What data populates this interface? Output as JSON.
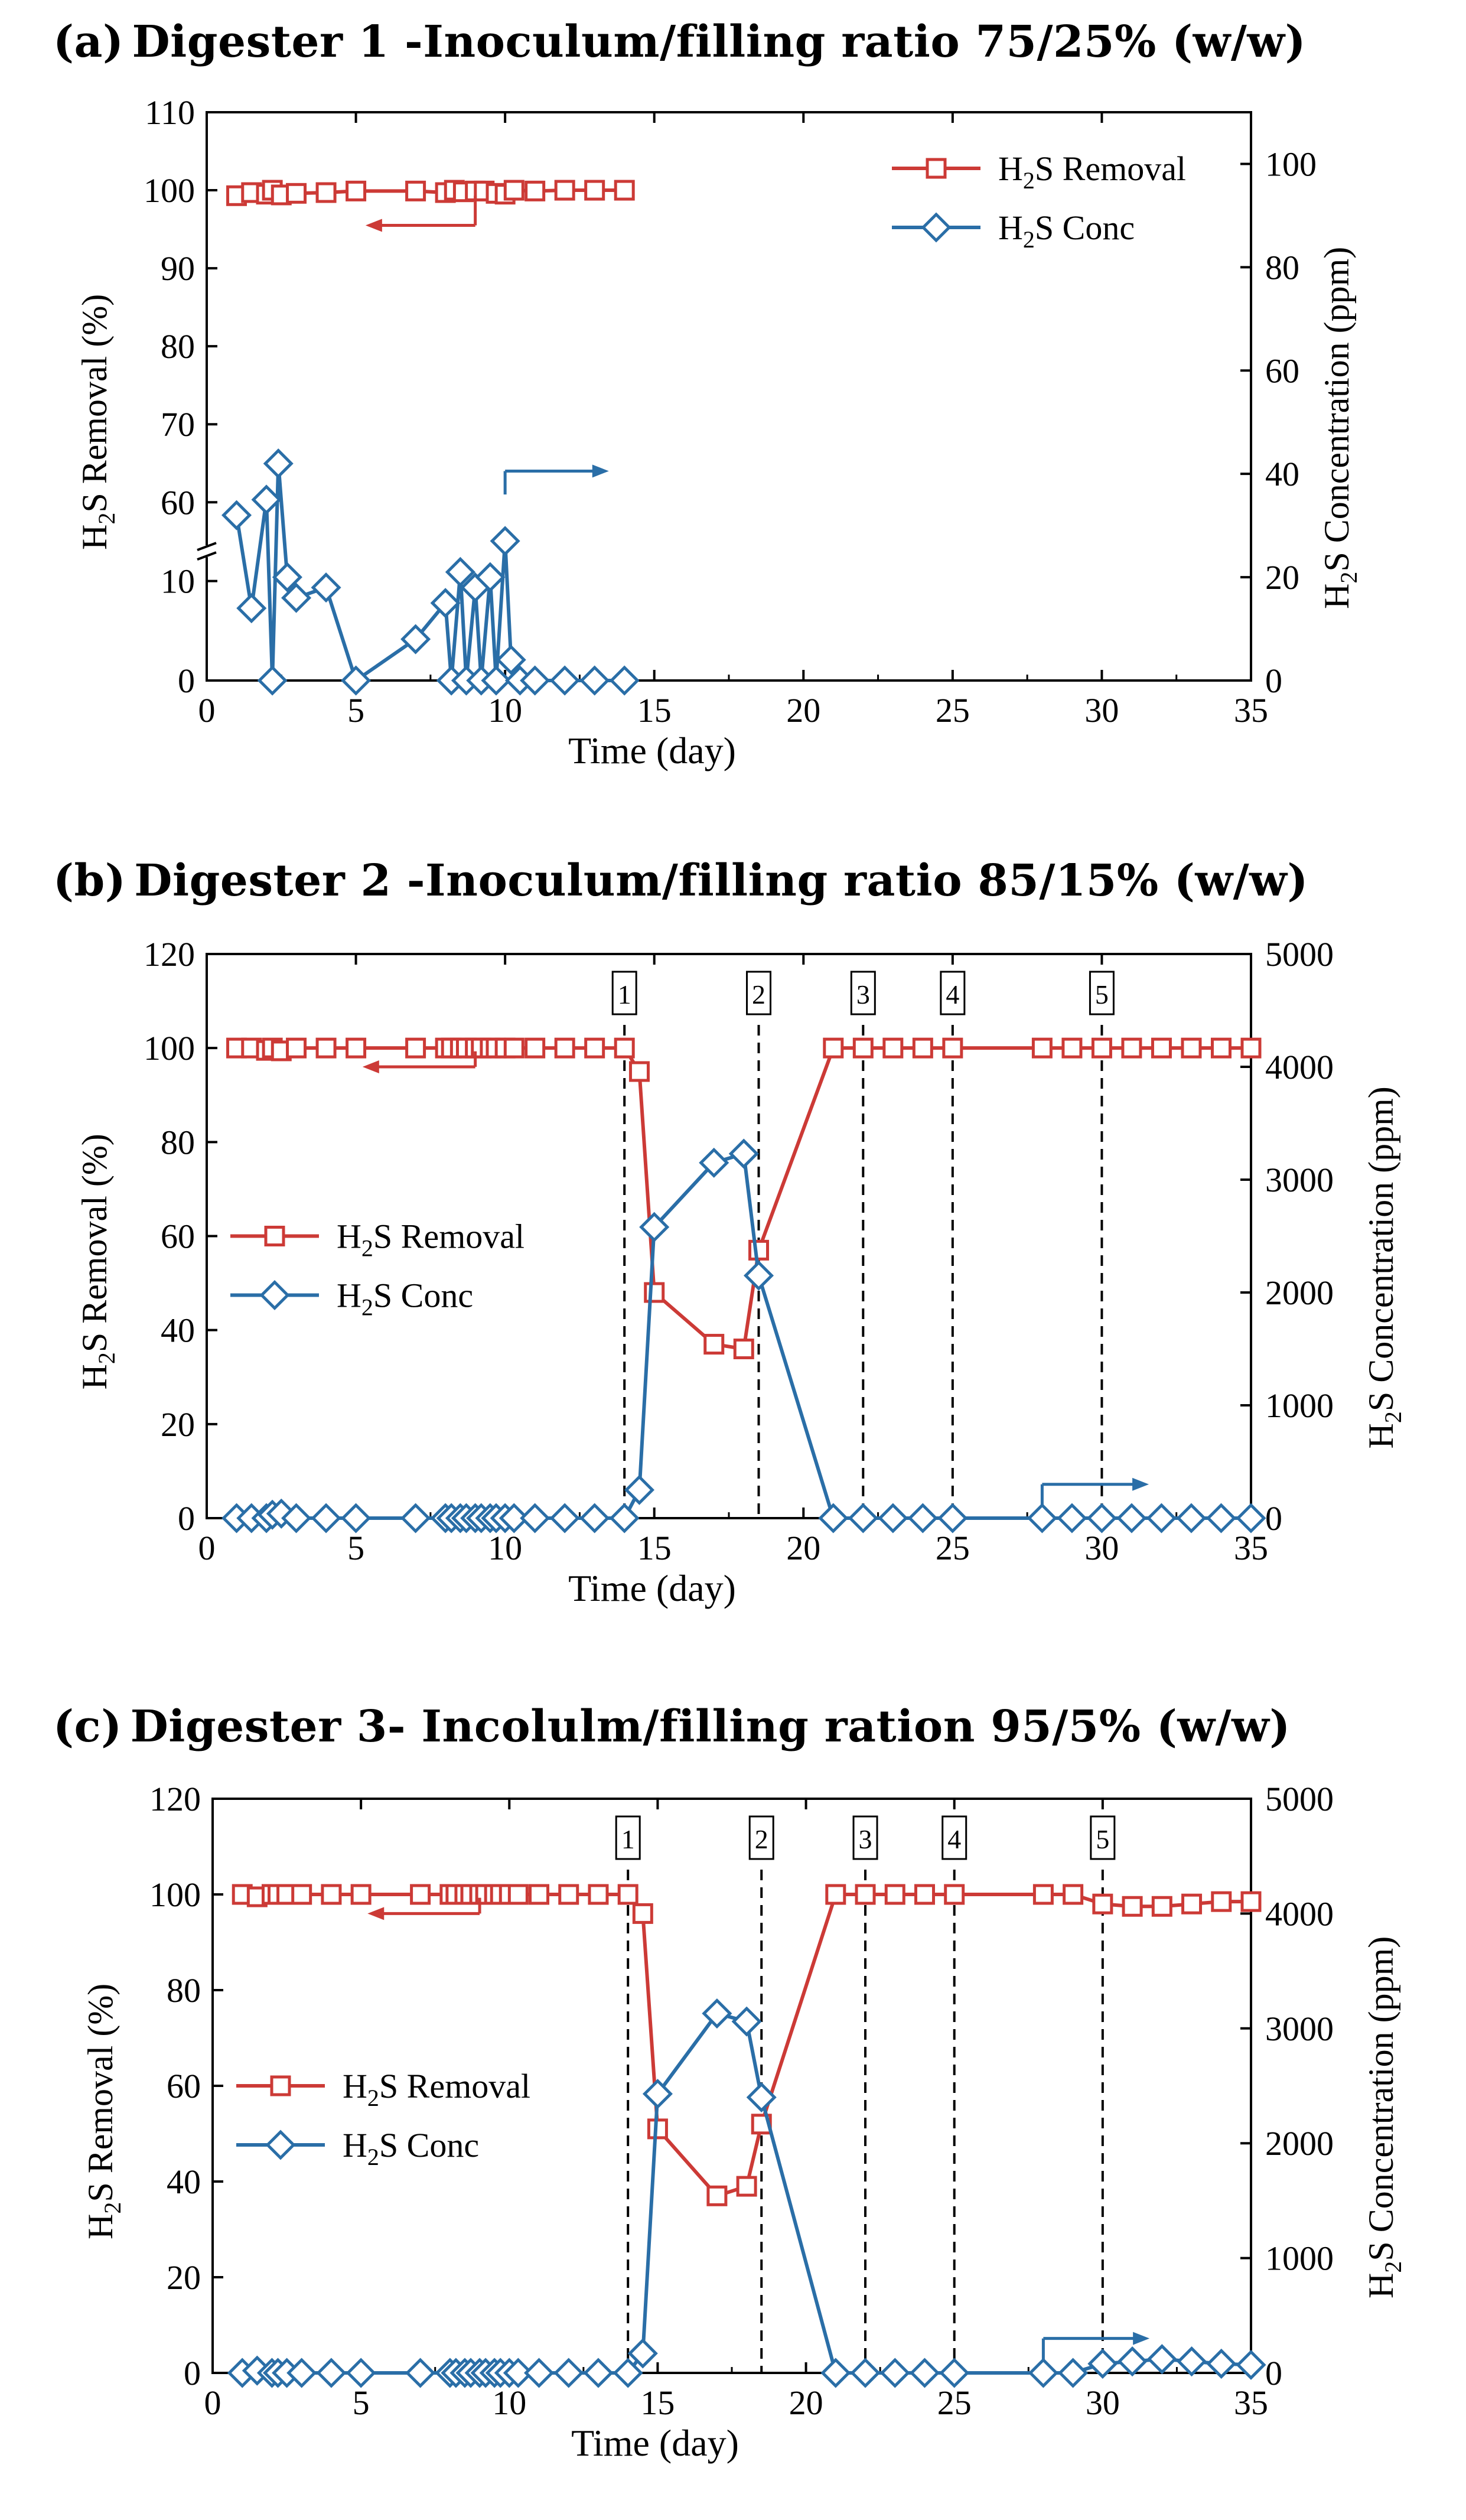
{
  "colors": {
    "removal": "#cc3a36",
    "conc": "#2a6ea7",
    "axis": "#000000"
  },
  "chart_data": [
    {
      "type": "line",
      "panel_label": "(a)",
      "title": "Digester 1 -Inoculum/filling ratio 75/25% (w/w)",
      "xlabel": "Time (day)",
      "ylabel": "H2S Removal (%)",
      "ylabel_parts": {
        "pre": "H",
        "sub": "2",
        "post": "S Removal (%)"
      },
      "y2label": "H2S Concentration (ppm)",
      "y2label_parts": {
        "pre": "H",
        "sub": "2",
        "post": "S Concentration (ppm)"
      },
      "xlim": [
        0,
        35
      ],
      "xticks": [
        0,
        5,
        10,
        15,
        20,
        25,
        30,
        35
      ],
      "y_broken": true,
      "ylim_lower": [
        0,
        12
      ],
      "ylim_upper": [
        55,
        110
      ],
      "yticks_lower": [
        0,
        10
      ],
      "yticks_upper": [
        60,
        70,
        80,
        90,
        100,
        110
      ],
      "y2lim": [
        0,
        110
      ],
      "y2ticks": [
        0,
        20,
        40,
        60,
        80,
        100
      ],
      "legend": [
        "H2S Removal",
        "H2S Conc"
      ],
      "legend_position": "top-right",
      "arrows": [
        {
          "series": "H2S Removal",
          "direction": "left"
        },
        {
          "series": "H2S Conc",
          "direction": "right"
        }
      ],
      "markers": [],
      "series": [
        {
          "name": "H2S Removal",
          "axis": "left",
          "marker": "square",
          "x": [
            1,
            1.5,
            2,
            2.2,
            2.5,
            3,
            4,
            5,
            7,
            8,
            8.3,
            8.6,
            9,
            9.3,
            9.7,
            10,
            10.3,
            11,
            12,
            13,
            14
          ],
          "y": [
            99.3,
            99.7,
            99.5,
            100,
            99.4,
            99.6,
            99.7,
            99.9,
            99.9,
            99.7,
            100,
            99.8,
            99.9,
            99.9,
            99.6,
            99.5,
            100,
            99.9,
            100,
            100,
            100
          ]
        },
        {
          "name": "H2S Conc",
          "axis": "right",
          "marker": "diamond",
          "x": [
            1,
            1.5,
            2,
            2.2,
            2.4,
            2.7,
            3,
            4,
            5,
            7,
            8,
            8.2,
            8.5,
            8.7,
            9,
            9.2,
            9.5,
            9.7,
            10,
            10.2,
            10.5,
            11,
            12,
            13,
            14
          ],
          "y": [
            32,
            14,
            35,
            0,
            42,
            20,
            16,
            18,
            0,
            8,
            15,
            0,
            21,
            0,
            18,
            0,
            20,
            0,
            27,
            4,
            0,
            0,
            0,
            0,
            0
          ]
        }
      ]
    },
    {
      "type": "line",
      "panel_label": "(b)",
      "title": "Digester 2 -Inoculum/filling ratio 85/15% (w/w)",
      "xlabel": "Time (day)",
      "ylabel": "H2S Removal (%)",
      "ylabel_parts": {
        "pre": "H",
        "sub": "2",
        "post": "S Removal (%)"
      },
      "y2label": "H2S Concentration (ppm)",
      "y2label_parts": {
        "pre": "H",
        "sub": "2",
        "post": "S Concentration (ppm)"
      },
      "xlim": [
        0,
        35
      ],
      "xticks": [
        0,
        5,
        10,
        15,
        20,
        25,
        30,
        35
      ],
      "y_broken": false,
      "ylim": [
        0,
        120
      ],
      "yticks": [
        0,
        20,
        40,
        60,
        80,
        100,
        120
      ],
      "y2lim": [
        0,
        5000
      ],
      "y2ticks": [
        0,
        1000,
        2000,
        3000,
        4000,
        5000
      ],
      "legend": [
        "H2S Removal",
        "H2S Conc"
      ],
      "legend_position": "center-left",
      "arrows": [
        {
          "series": "H2S Removal",
          "direction": "left"
        },
        {
          "series": "H2S Conc",
          "direction": "right"
        }
      ],
      "markers": [
        {
          "x": 14,
          "label": "1"
        },
        {
          "x": 18.5,
          "label": "2"
        },
        {
          "x": 22,
          "label": "3"
        },
        {
          "x": 25,
          "label": "4"
        },
        {
          "x": 30,
          "label": "5"
        }
      ],
      "series": [
        {
          "name": "H2S Removal",
          "axis": "left",
          "marker": "square",
          "x": [
            1,
            1.5,
            2,
            2.2,
            2.5,
            3,
            4,
            5,
            7,
            8,
            8.2,
            8.5,
            8.7,
            9,
            9.2,
            9.5,
            9.7,
            10,
            10.3,
            11,
            12,
            13,
            14,
            14.5,
            15,
            17,
            18,
            18.5,
            21,
            22,
            23,
            24,
            25,
            28,
            29,
            30,
            31,
            32,
            33,
            34,
            35
          ],
          "y": [
            100,
            100,
            99.5,
            100,
            99.4,
            100,
            100,
            100,
            100,
            100,
            100,
            100,
            100,
            100,
            100,
            100,
            100,
            100,
            100,
            100,
            100,
            100,
            100,
            95,
            48,
            37,
            36,
            57,
            100,
            100,
            100,
            100,
            100,
            100,
            100,
            100,
            100,
            100,
            100,
            100,
            100
          ]
        },
        {
          "name": "H2S Conc",
          "axis": "right",
          "marker": "diamond",
          "x": [
            1,
            1.5,
            2,
            2.2,
            2.5,
            3,
            4,
            5,
            7,
            8,
            8.2,
            8.5,
            8.7,
            9,
            9.2,
            9.5,
            9.7,
            10,
            10.3,
            11,
            12,
            13,
            14,
            14.5,
            15,
            17,
            18,
            18.5,
            21,
            22,
            23,
            24,
            25,
            28,
            29,
            30,
            31,
            32,
            33,
            34,
            35
          ],
          "y": [
            0,
            0,
            0,
            30,
            40,
            0,
            0,
            0,
            0,
            0,
            0,
            0,
            0,
            0,
            0,
            0,
            0,
            0,
            0,
            0,
            0,
            0,
            0,
            250,
            2580,
            3150,
            3230,
            2150,
            0,
            0,
            0,
            0,
            0,
            0,
            0,
            0,
            0,
            0,
            0,
            0,
            0
          ]
        }
      ]
    },
    {
      "type": "line",
      "panel_label": "(c)",
      "title": "Digester 3- Incolulm/filling ration 95/5% (w/w)",
      "xlabel": "Time (day)",
      "ylabel": "H2S Removal (%)",
      "ylabel_parts": {
        "pre": "H",
        "sub": "2",
        "post": "S Removal (%)"
      },
      "y2label": "H2S Concentration (ppm)",
      "y2label_parts": {
        "pre": "H",
        "sub": "2",
        "post": "S Concentration (ppm)"
      },
      "xlim": [
        0,
        35
      ],
      "xticks": [
        0,
        5,
        10,
        15,
        20,
        25,
        30,
        35
      ],
      "y_broken": false,
      "ylim": [
        0,
        120
      ],
      "yticks": [
        0,
        20,
        40,
        60,
        80,
        100,
        120
      ],
      "y2lim": [
        0,
        5000
      ],
      "y2ticks": [
        0,
        1000,
        2000,
        3000,
        4000,
        5000
      ],
      "legend": [
        "H2S Removal",
        "H2S Conc"
      ],
      "legend_position": "center-left",
      "arrows": [
        {
          "series": "H2S Removal",
          "direction": "left"
        },
        {
          "series": "H2S Conc",
          "direction": "right"
        }
      ],
      "markers": [
        {
          "x": 14,
          "label": "1"
        },
        {
          "x": 18.5,
          "label": "2"
        },
        {
          "x": 22,
          "label": "3"
        },
        {
          "x": 25,
          "label": "4"
        },
        {
          "x": 30,
          "label": "5"
        }
      ],
      "series": [
        {
          "name": "H2S Removal",
          "axis": "left",
          "marker": "square",
          "x": [
            1,
            1.5,
            2,
            2.2,
            2.5,
            3,
            4,
            5,
            7,
            8,
            8.2,
            8.5,
            8.7,
            9,
            9.2,
            9.5,
            9.7,
            10,
            10.3,
            11,
            12,
            13,
            14,
            14.5,
            15,
            17,
            18,
            18.5,
            21,
            22,
            23,
            24,
            25,
            28,
            29,
            30,
            31,
            32,
            33,
            34,
            35
          ],
          "y": [
            100,
            99.5,
            100,
            100,
            100,
            100,
            100,
            100,
            100,
            100,
            100,
            100,
            100,
            100,
            100,
            100,
            100,
            100,
            100,
            100,
            100,
            100,
            100,
            96,
            51,
            37,
            39,
            52,
            100,
            100,
            100,
            100,
            100,
            100,
            100,
            98,
            97.5,
            97.5,
            98,
            98.5,
            98.5
          ]
        },
        {
          "name": "H2S Conc",
          "axis": "right",
          "marker": "diamond",
          "x": [
            1,
            1.5,
            2,
            2.2,
            2.5,
            3,
            4,
            5,
            7,
            8,
            8.2,
            8.5,
            8.7,
            9,
            9.2,
            9.5,
            9.7,
            10,
            10.3,
            11,
            12,
            13,
            14,
            14.5,
            15,
            17,
            18,
            18.5,
            21,
            22,
            23,
            24,
            25,
            28,
            29,
            30,
            31,
            32,
            33,
            34,
            35
          ],
          "y": [
            0,
            20,
            0,
            0,
            0,
            0,
            0,
            0,
            0,
            0,
            0,
            0,
            0,
            0,
            0,
            0,
            0,
            0,
            0,
            0,
            0,
            0,
            0,
            170,
            2430,
            3130,
            3060,
            2400,
            0,
            0,
            0,
            0,
            0,
            0,
            0,
            80,
            100,
            120,
            100,
            80,
            70
          ]
        }
      ]
    }
  ]
}
